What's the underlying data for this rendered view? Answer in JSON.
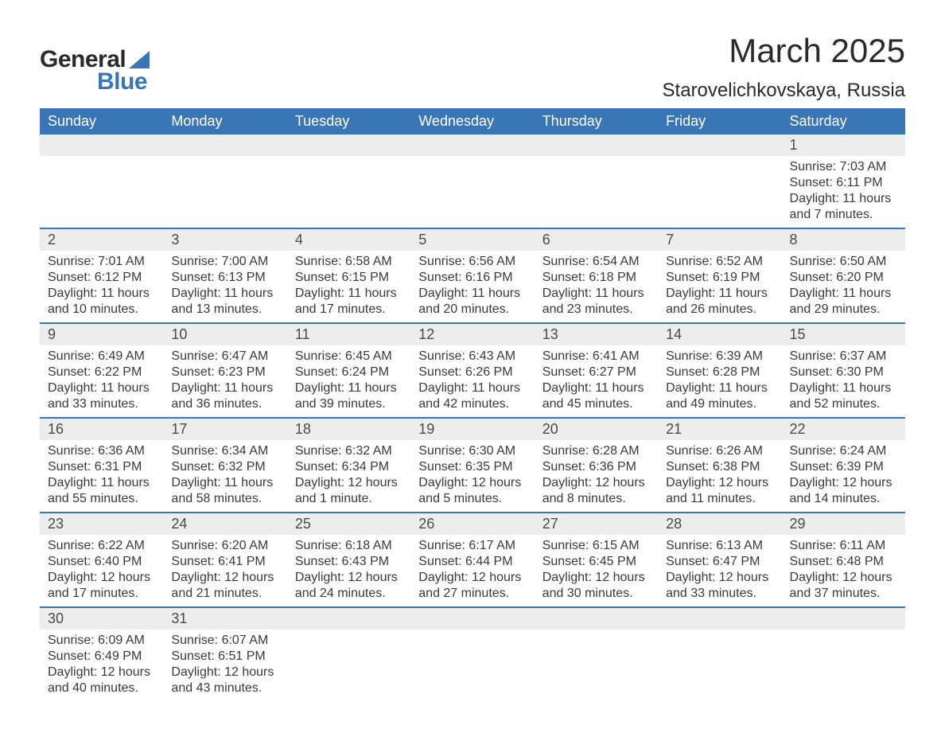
{
  "brand": {
    "word1": "General",
    "word2": "Blue"
  },
  "title": "March 2025",
  "location": "Starovelichkovskaya, Russia",
  "colors": {
    "header_bg": "#3a75b5",
    "header_fg": "#ffffff",
    "daynum_bg": "#ededed",
    "row_divider": "#3a75b5",
    "text": "#3a3a3a",
    "logo_accent": "#3a75b5"
  },
  "typography": {
    "title_fontsize_pt": 32,
    "location_fontsize_pt": 18,
    "header_fontsize_pt": 14,
    "body_fontsize_pt": 12
  },
  "layout": {
    "columns": 7,
    "rows": 6,
    "first_day_col_index": 6
  },
  "labels": {
    "sunrise_prefix": "Sunrise: ",
    "sunset_prefix": "Sunset: ",
    "daylight_prefix": "Daylight: "
  },
  "day_headers": [
    "Sunday",
    "Monday",
    "Tuesday",
    "Wednesday",
    "Thursday",
    "Friday",
    "Saturday"
  ],
  "weeks": [
    [
      null,
      null,
      null,
      null,
      null,
      null,
      {
        "n": "1",
        "sunrise": "7:03 AM",
        "sunset": "6:11 PM",
        "daylight": "11 hours and 7 minutes."
      }
    ],
    [
      {
        "n": "2",
        "sunrise": "7:01 AM",
        "sunset": "6:12 PM",
        "daylight": "11 hours and 10 minutes."
      },
      {
        "n": "3",
        "sunrise": "7:00 AM",
        "sunset": "6:13 PM",
        "daylight": "11 hours and 13 minutes."
      },
      {
        "n": "4",
        "sunrise": "6:58 AM",
        "sunset": "6:15 PM",
        "daylight": "11 hours and 17 minutes."
      },
      {
        "n": "5",
        "sunrise": "6:56 AM",
        "sunset": "6:16 PM",
        "daylight": "11 hours and 20 minutes."
      },
      {
        "n": "6",
        "sunrise": "6:54 AM",
        "sunset": "6:18 PM",
        "daylight": "11 hours and 23 minutes."
      },
      {
        "n": "7",
        "sunrise": "6:52 AM",
        "sunset": "6:19 PM",
        "daylight": "11 hours and 26 minutes."
      },
      {
        "n": "8",
        "sunrise": "6:50 AM",
        "sunset": "6:20 PM",
        "daylight": "11 hours and 29 minutes."
      }
    ],
    [
      {
        "n": "9",
        "sunrise": "6:49 AM",
        "sunset": "6:22 PM",
        "daylight": "11 hours and 33 minutes."
      },
      {
        "n": "10",
        "sunrise": "6:47 AM",
        "sunset": "6:23 PM",
        "daylight": "11 hours and 36 minutes."
      },
      {
        "n": "11",
        "sunrise": "6:45 AM",
        "sunset": "6:24 PM",
        "daylight": "11 hours and 39 minutes."
      },
      {
        "n": "12",
        "sunrise": "6:43 AM",
        "sunset": "6:26 PM",
        "daylight": "11 hours and 42 minutes."
      },
      {
        "n": "13",
        "sunrise": "6:41 AM",
        "sunset": "6:27 PM",
        "daylight": "11 hours and 45 minutes."
      },
      {
        "n": "14",
        "sunrise": "6:39 AM",
        "sunset": "6:28 PM",
        "daylight": "11 hours and 49 minutes."
      },
      {
        "n": "15",
        "sunrise": "6:37 AM",
        "sunset": "6:30 PM",
        "daylight": "11 hours and 52 minutes."
      }
    ],
    [
      {
        "n": "16",
        "sunrise": "6:36 AM",
        "sunset": "6:31 PM",
        "daylight": "11 hours and 55 minutes."
      },
      {
        "n": "17",
        "sunrise": "6:34 AM",
        "sunset": "6:32 PM",
        "daylight": "11 hours and 58 minutes."
      },
      {
        "n": "18",
        "sunrise": "6:32 AM",
        "sunset": "6:34 PM",
        "daylight": "12 hours and 1 minute."
      },
      {
        "n": "19",
        "sunrise": "6:30 AM",
        "sunset": "6:35 PM",
        "daylight": "12 hours and 5 minutes."
      },
      {
        "n": "20",
        "sunrise": "6:28 AM",
        "sunset": "6:36 PM",
        "daylight": "12 hours and 8 minutes."
      },
      {
        "n": "21",
        "sunrise": "6:26 AM",
        "sunset": "6:38 PM",
        "daylight": "12 hours and 11 minutes."
      },
      {
        "n": "22",
        "sunrise": "6:24 AM",
        "sunset": "6:39 PM",
        "daylight": "12 hours and 14 minutes."
      }
    ],
    [
      {
        "n": "23",
        "sunrise": "6:22 AM",
        "sunset": "6:40 PM",
        "daylight": "12 hours and 17 minutes."
      },
      {
        "n": "24",
        "sunrise": "6:20 AM",
        "sunset": "6:41 PM",
        "daylight": "12 hours and 21 minutes."
      },
      {
        "n": "25",
        "sunrise": "6:18 AM",
        "sunset": "6:43 PM",
        "daylight": "12 hours and 24 minutes."
      },
      {
        "n": "26",
        "sunrise": "6:17 AM",
        "sunset": "6:44 PM",
        "daylight": "12 hours and 27 minutes."
      },
      {
        "n": "27",
        "sunrise": "6:15 AM",
        "sunset": "6:45 PM",
        "daylight": "12 hours and 30 minutes."
      },
      {
        "n": "28",
        "sunrise": "6:13 AM",
        "sunset": "6:47 PM",
        "daylight": "12 hours and 33 minutes."
      },
      {
        "n": "29",
        "sunrise": "6:11 AM",
        "sunset": "6:48 PM",
        "daylight": "12 hours and 37 minutes."
      }
    ],
    [
      {
        "n": "30",
        "sunrise": "6:09 AM",
        "sunset": "6:49 PM",
        "daylight": "12 hours and 40 minutes."
      },
      {
        "n": "31",
        "sunrise": "6:07 AM",
        "sunset": "6:51 PM",
        "daylight": "12 hours and 43 minutes."
      },
      null,
      null,
      null,
      null,
      null
    ]
  ]
}
